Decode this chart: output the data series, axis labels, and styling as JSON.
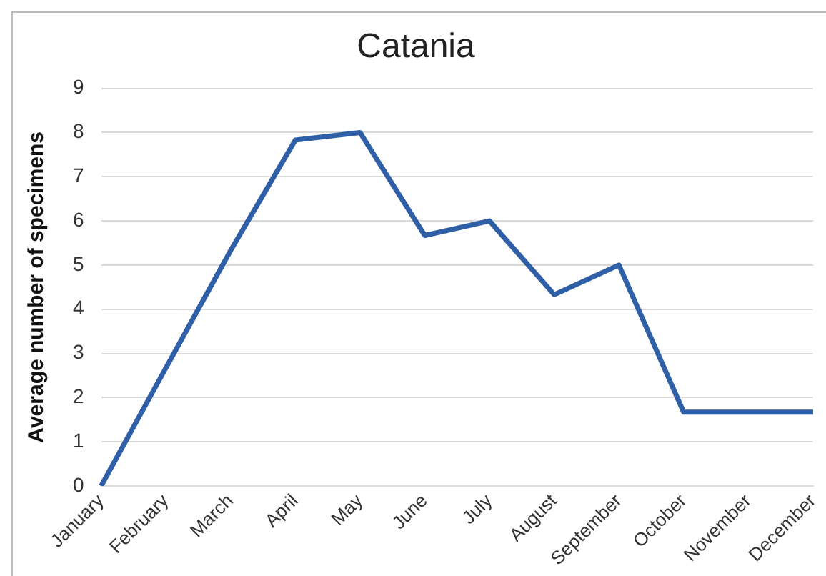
{
  "chart_data": {
    "type": "line",
    "title": "Catania",
    "ylabel": "Average number of specimens",
    "categories": [
      "January",
      "February",
      "March",
      "April",
      "May",
      "June",
      "July",
      "August",
      "September",
      "October",
      "November",
      "December"
    ],
    "series": [
      {
        "color": "#2f5fa7",
        "values": [
          0,
          2.67,
          5.33,
          7.83,
          8,
          5.67,
          6,
          4.33,
          5,
          1.67,
          1.67,
          1.67
        ]
      }
    ],
    "ylim": [
      0,
      9
    ],
    "yticks": [
      0,
      1,
      2,
      3,
      4,
      5,
      6,
      7,
      8,
      9
    ],
    "grid": "y",
    "legend": false,
    "marker": "none",
    "line_style": "solid"
  }
}
